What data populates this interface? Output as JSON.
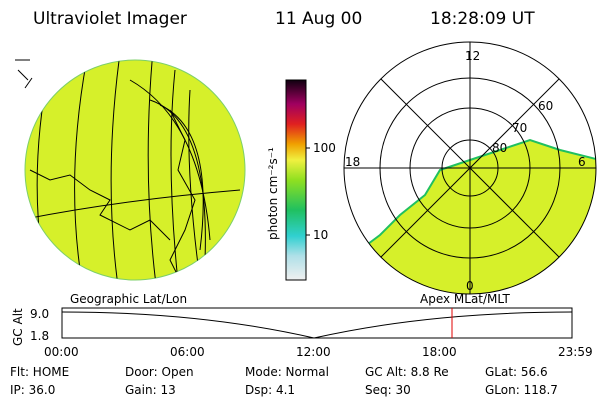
{
  "header": {
    "title": "Ultraviolet Imager",
    "date": "11 Aug 00",
    "time": "18:28:09 UT"
  },
  "colorbar": {
    "label": "photon cm⁻²s⁻¹",
    "ticks": [
      "100",
      "10"
    ]
  },
  "polar": {
    "mlt_labels": [
      "12",
      "18",
      "6",
      "0"
    ],
    "lat_labels": [
      "60",
      "70",
      "80"
    ]
  },
  "panels": {
    "left": "Geographic Lat/Lon",
    "right": "Apex MLat/MLT"
  },
  "timeline": {
    "y_label": "GC Alt",
    "y_ticks": [
      "9.0",
      "1.8"
    ],
    "x_ticks": [
      "00:00",
      "06:00",
      "12:00",
      "18:00",
      "23:59"
    ]
  },
  "info": {
    "rows": [
      [
        "Flt: HOME",
        "Door: Open",
        "Mode: Normal",
        "GC Alt: 8.8 Re",
        "GLat: 56.6"
      ],
      [
        "IP: 36.0",
        "Gain: 13",
        "Dsp: 4.1",
        "Seq: 30",
        "GLon: 118.7"
      ]
    ]
  }
}
